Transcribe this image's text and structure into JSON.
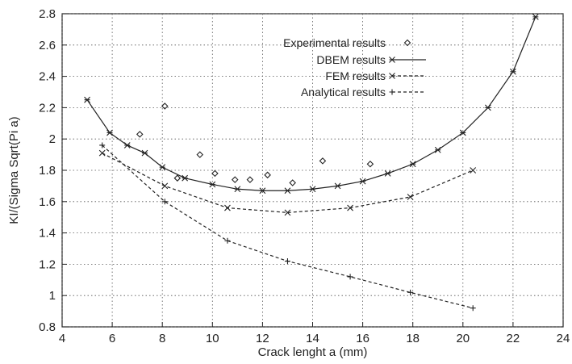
{
  "chart_data": {
    "type": "line",
    "xlabel": "Crack lenght a (mm)",
    "ylabel": "KI/(Sigma Sqrt(Pi a)",
    "xlim": [
      4,
      24
    ],
    "ylim": [
      0.8,
      2.8
    ],
    "xticks": [
      "4",
      "6",
      "8",
      "10",
      "12",
      "14",
      "16",
      "18",
      "20",
      "22",
      "24"
    ],
    "yticks": [
      "0.8",
      "1",
      "1.2",
      "1.4",
      "1.6",
      "1.8",
      "2",
      "2.2",
      "2.4",
      "2.6",
      "2.8"
    ],
    "grid": true,
    "legend_position": "top-center",
    "series": [
      {
        "name": "Experimental results",
        "style": "markers-only",
        "marker": "diamond",
        "x": [
          7.1,
          8.1,
          8.6,
          9.5,
          10.1,
          10.9,
          11.5,
          12.2,
          13.2,
          14.4,
          16.3
        ],
        "y": [
          2.03,
          2.21,
          1.75,
          1.9,
          1.78,
          1.74,
          1.74,
          1.77,
          1.72,
          1.86,
          1.84
        ]
      },
      {
        "name": "DBEM results",
        "style": "solid",
        "marker": "asterisk",
        "x": [
          5.0,
          5.9,
          6.6,
          7.3,
          8.0,
          8.9,
          10.0,
          11.0,
          12.0,
          13.0,
          14.0,
          15.0,
          16.0,
          17.0,
          18.0,
          19.0,
          20.0,
          21.0,
          22.0,
          22.9
        ],
        "y": [
          2.25,
          2.04,
          1.96,
          1.91,
          1.82,
          1.75,
          1.71,
          1.68,
          1.67,
          1.67,
          1.68,
          1.7,
          1.73,
          1.78,
          1.84,
          1.93,
          2.04,
          2.2,
          2.43,
          2.78
        ]
      },
      {
        "name": "FEM results",
        "style": "dashed",
        "marker": "x",
        "x": [
          5.6,
          8.1,
          10.6,
          13.0,
          15.5,
          17.9,
          20.4
        ],
        "y": [
          1.91,
          1.7,
          1.56,
          1.53,
          1.56,
          1.63,
          1.8
        ]
      },
      {
        "name": "Analytical results",
        "style": "dashed",
        "marker": "plus",
        "x": [
          5.6,
          8.1,
          10.6,
          13.0,
          15.5,
          17.9,
          20.4
        ],
        "y": [
          1.96,
          1.6,
          1.35,
          1.22,
          1.12,
          1.02,
          0.92
        ]
      }
    ]
  }
}
